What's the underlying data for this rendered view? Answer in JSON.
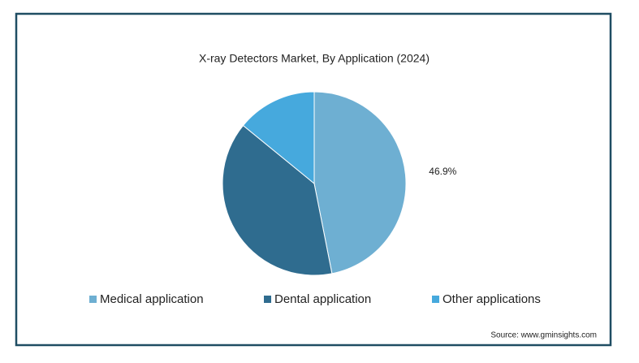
{
  "chart_data": {
    "type": "pie",
    "title": "X-ray Detectors Market, By Application (2024)",
    "categories": [
      "Medical application",
      "Dental application",
      "Other applications"
    ],
    "values": [
      46.9,
      39.0,
      14.1
    ],
    "value_labels": [
      "46.9%",
      null,
      null
    ],
    "colors": [
      "#6eafd2",
      "#2f6c8f",
      "#46a9dd"
    ],
    "source": "Source: www.gminsights.com"
  }
}
